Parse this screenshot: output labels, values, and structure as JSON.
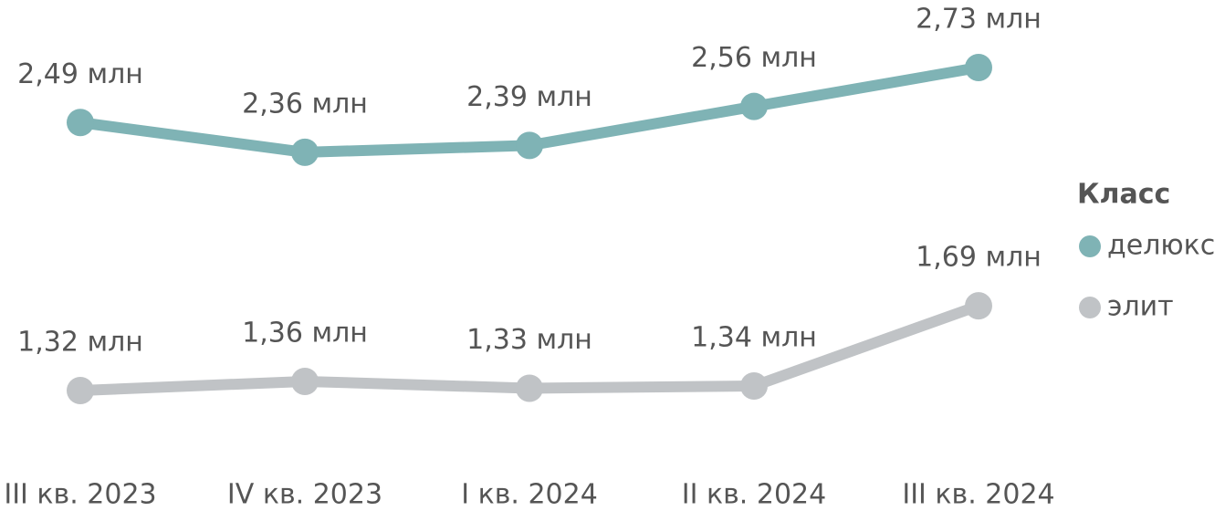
{
  "chart_data": {
    "type": "line",
    "categories": [
      "III кв. 2023",
      "IV кв. 2023",
      "I кв. 2024",
      "II кв. 2024",
      "III кв. 2024"
    ],
    "legend_title": "Класс",
    "legend_position": "right",
    "series": [
      {
        "name": "делюкс",
        "color": "#7fb3b5",
        "values": [
          2.49,
          2.36,
          2.39,
          2.56,
          2.73
        ],
        "value_labels": [
          "2,49 млн",
          "2,36 млн",
          "2,39 млн",
          "2,56 млн",
          "2,73 млн"
        ]
      },
      {
        "name": "элит",
        "color": "#c0c3c6",
        "values": [
          1.32,
          1.36,
          1.33,
          1.34,
          1.69
        ],
        "value_labels": [
          "1,32 млн",
          "1,36 млн",
          "1,33 млн",
          "1,34 млн",
          "1,69 млн"
        ]
      }
    ]
  }
}
